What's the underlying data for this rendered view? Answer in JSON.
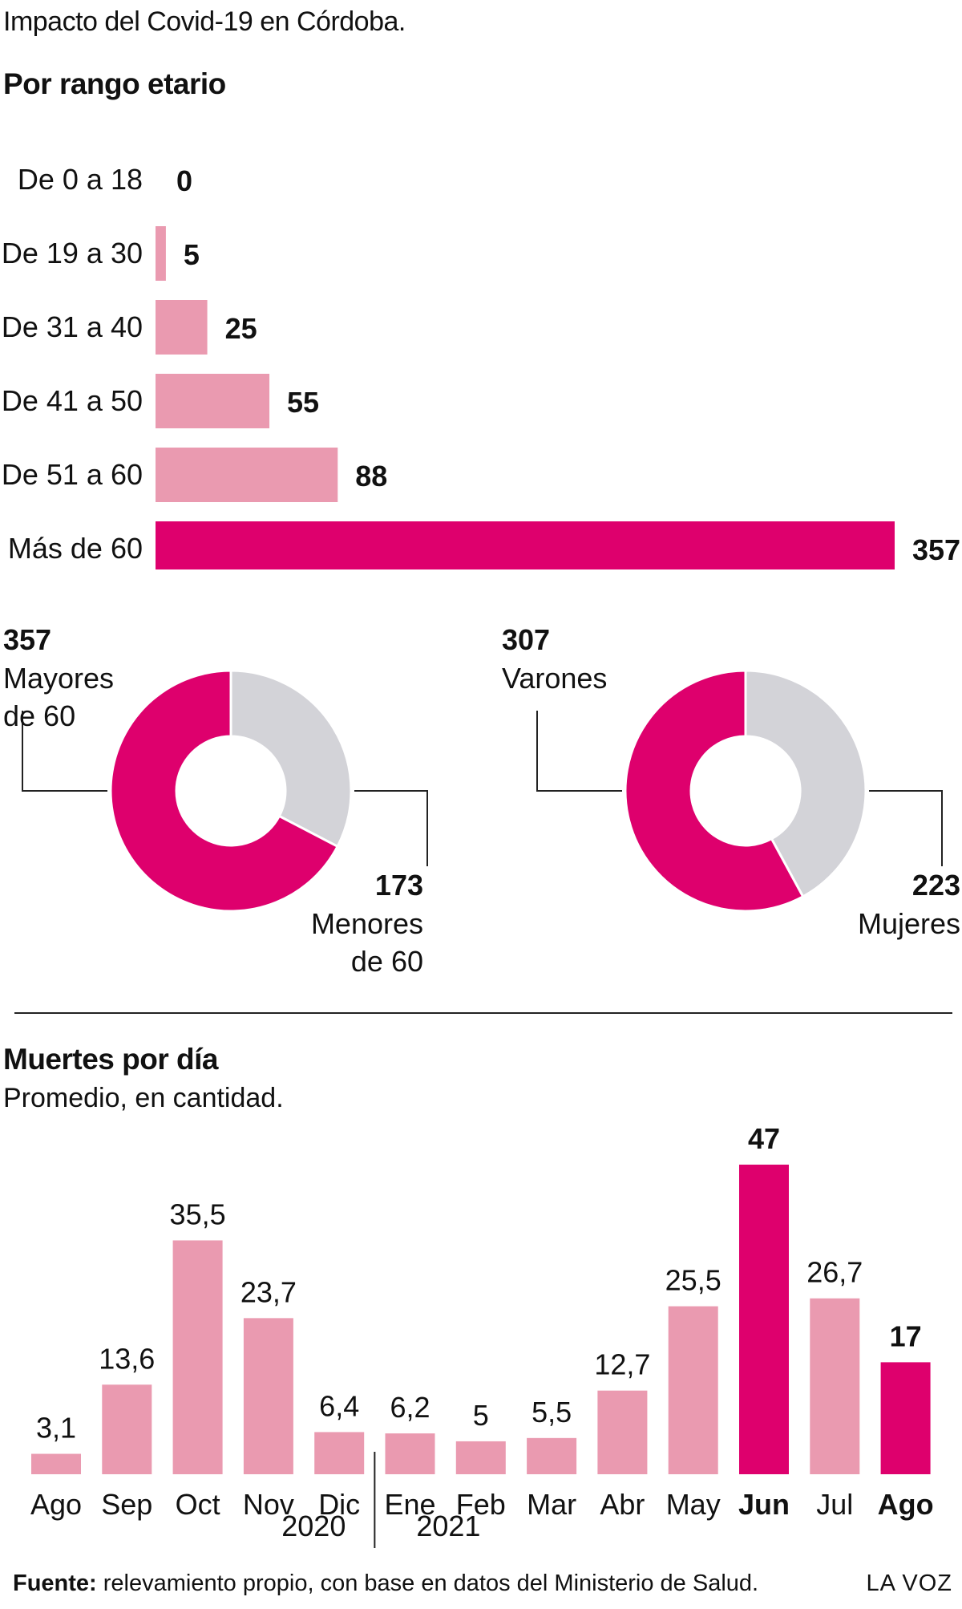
{
  "header": {
    "title": "Impacto del Covid-19 en Córdoba."
  },
  "chart_data": [
    {
      "type": "bar",
      "orientation": "horizontal",
      "title": "Por rango etario",
      "categories": [
        "De 0 a 18",
        "De 19 a 30",
        "De 31 a 40",
        "De 41 a 50",
        "De 51 a 60",
        "Más de 60"
      ],
      "values": [
        0,
        5,
        25,
        55,
        88,
        357
      ],
      "value_labels": [
        "0",
        "5",
        "25",
        "55",
        "88",
        "357"
      ],
      "highlight": [
        false,
        false,
        false,
        false,
        false,
        true
      ]
    },
    {
      "type": "pie",
      "style": "donut",
      "slices": [
        {
          "value": 357,
          "value_label": "357",
          "label": "Mayores de 60",
          "label_lines": [
            "Mayores",
            "de 60"
          ],
          "color": "#de006d"
        },
        {
          "value": 173,
          "value_label": "173",
          "label": "Menores de 60",
          "label_lines": [
            "Menores",
            "de 60"
          ],
          "color": "#d3d3d8"
        }
      ]
    },
    {
      "type": "pie",
      "style": "donut",
      "slices": [
        {
          "value": 307,
          "value_label": "307",
          "label": "Varones",
          "label_lines": [
            "Varones"
          ],
          "color": "#de006d"
        },
        {
          "value": 223,
          "value_label": "223",
          "label": "Mujeres",
          "label_lines": [
            "Mujeres"
          ],
          "color": "#d3d3d8"
        }
      ]
    },
    {
      "type": "bar",
      "title": "Muertes por día",
      "subtitle": "Promedio, en cantidad.",
      "categories": [
        "Ago",
        "Sep",
        "Oct",
        "Nov",
        "Dic",
        "Ene",
        "Feb",
        "Mar",
        "Abr",
        "May",
        "Jun",
        "Jul",
        "Ago"
      ],
      "values": [
        3.1,
        13.6,
        35.5,
        23.7,
        6.4,
        6.2,
        5,
        5.5,
        12.7,
        25.5,
        47,
        26.7,
        17
      ],
      "value_labels": [
        "3,1",
        "13,6",
        "35,5",
        "23,7",
        "6,4",
        "6,2",
        "5",
        "5,5",
        "12,7",
        "25,5",
        "47",
        "26,7",
        "17"
      ],
      "highlight": [
        false,
        false,
        false,
        false,
        false,
        false,
        false,
        false,
        false,
        false,
        true,
        false,
        true
      ],
      "year_groups": [
        {
          "label": "2020",
          "from": 0,
          "to": 4
        },
        {
          "label": "2021",
          "from": 5,
          "to": 12
        }
      ]
    }
  ],
  "colors": {
    "highlight": "#de006d",
    "regular": "#ea9ab0",
    "neutral": "#d3d3d8",
    "text": "#111111",
    "rule": "#222222"
  },
  "footer": {
    "source_label": "Fuente:",
    "source_text": " relevamiento propio, con base en datos del Ministerio de Salud.",
    "brand": "LA VOZ"
  }
}
